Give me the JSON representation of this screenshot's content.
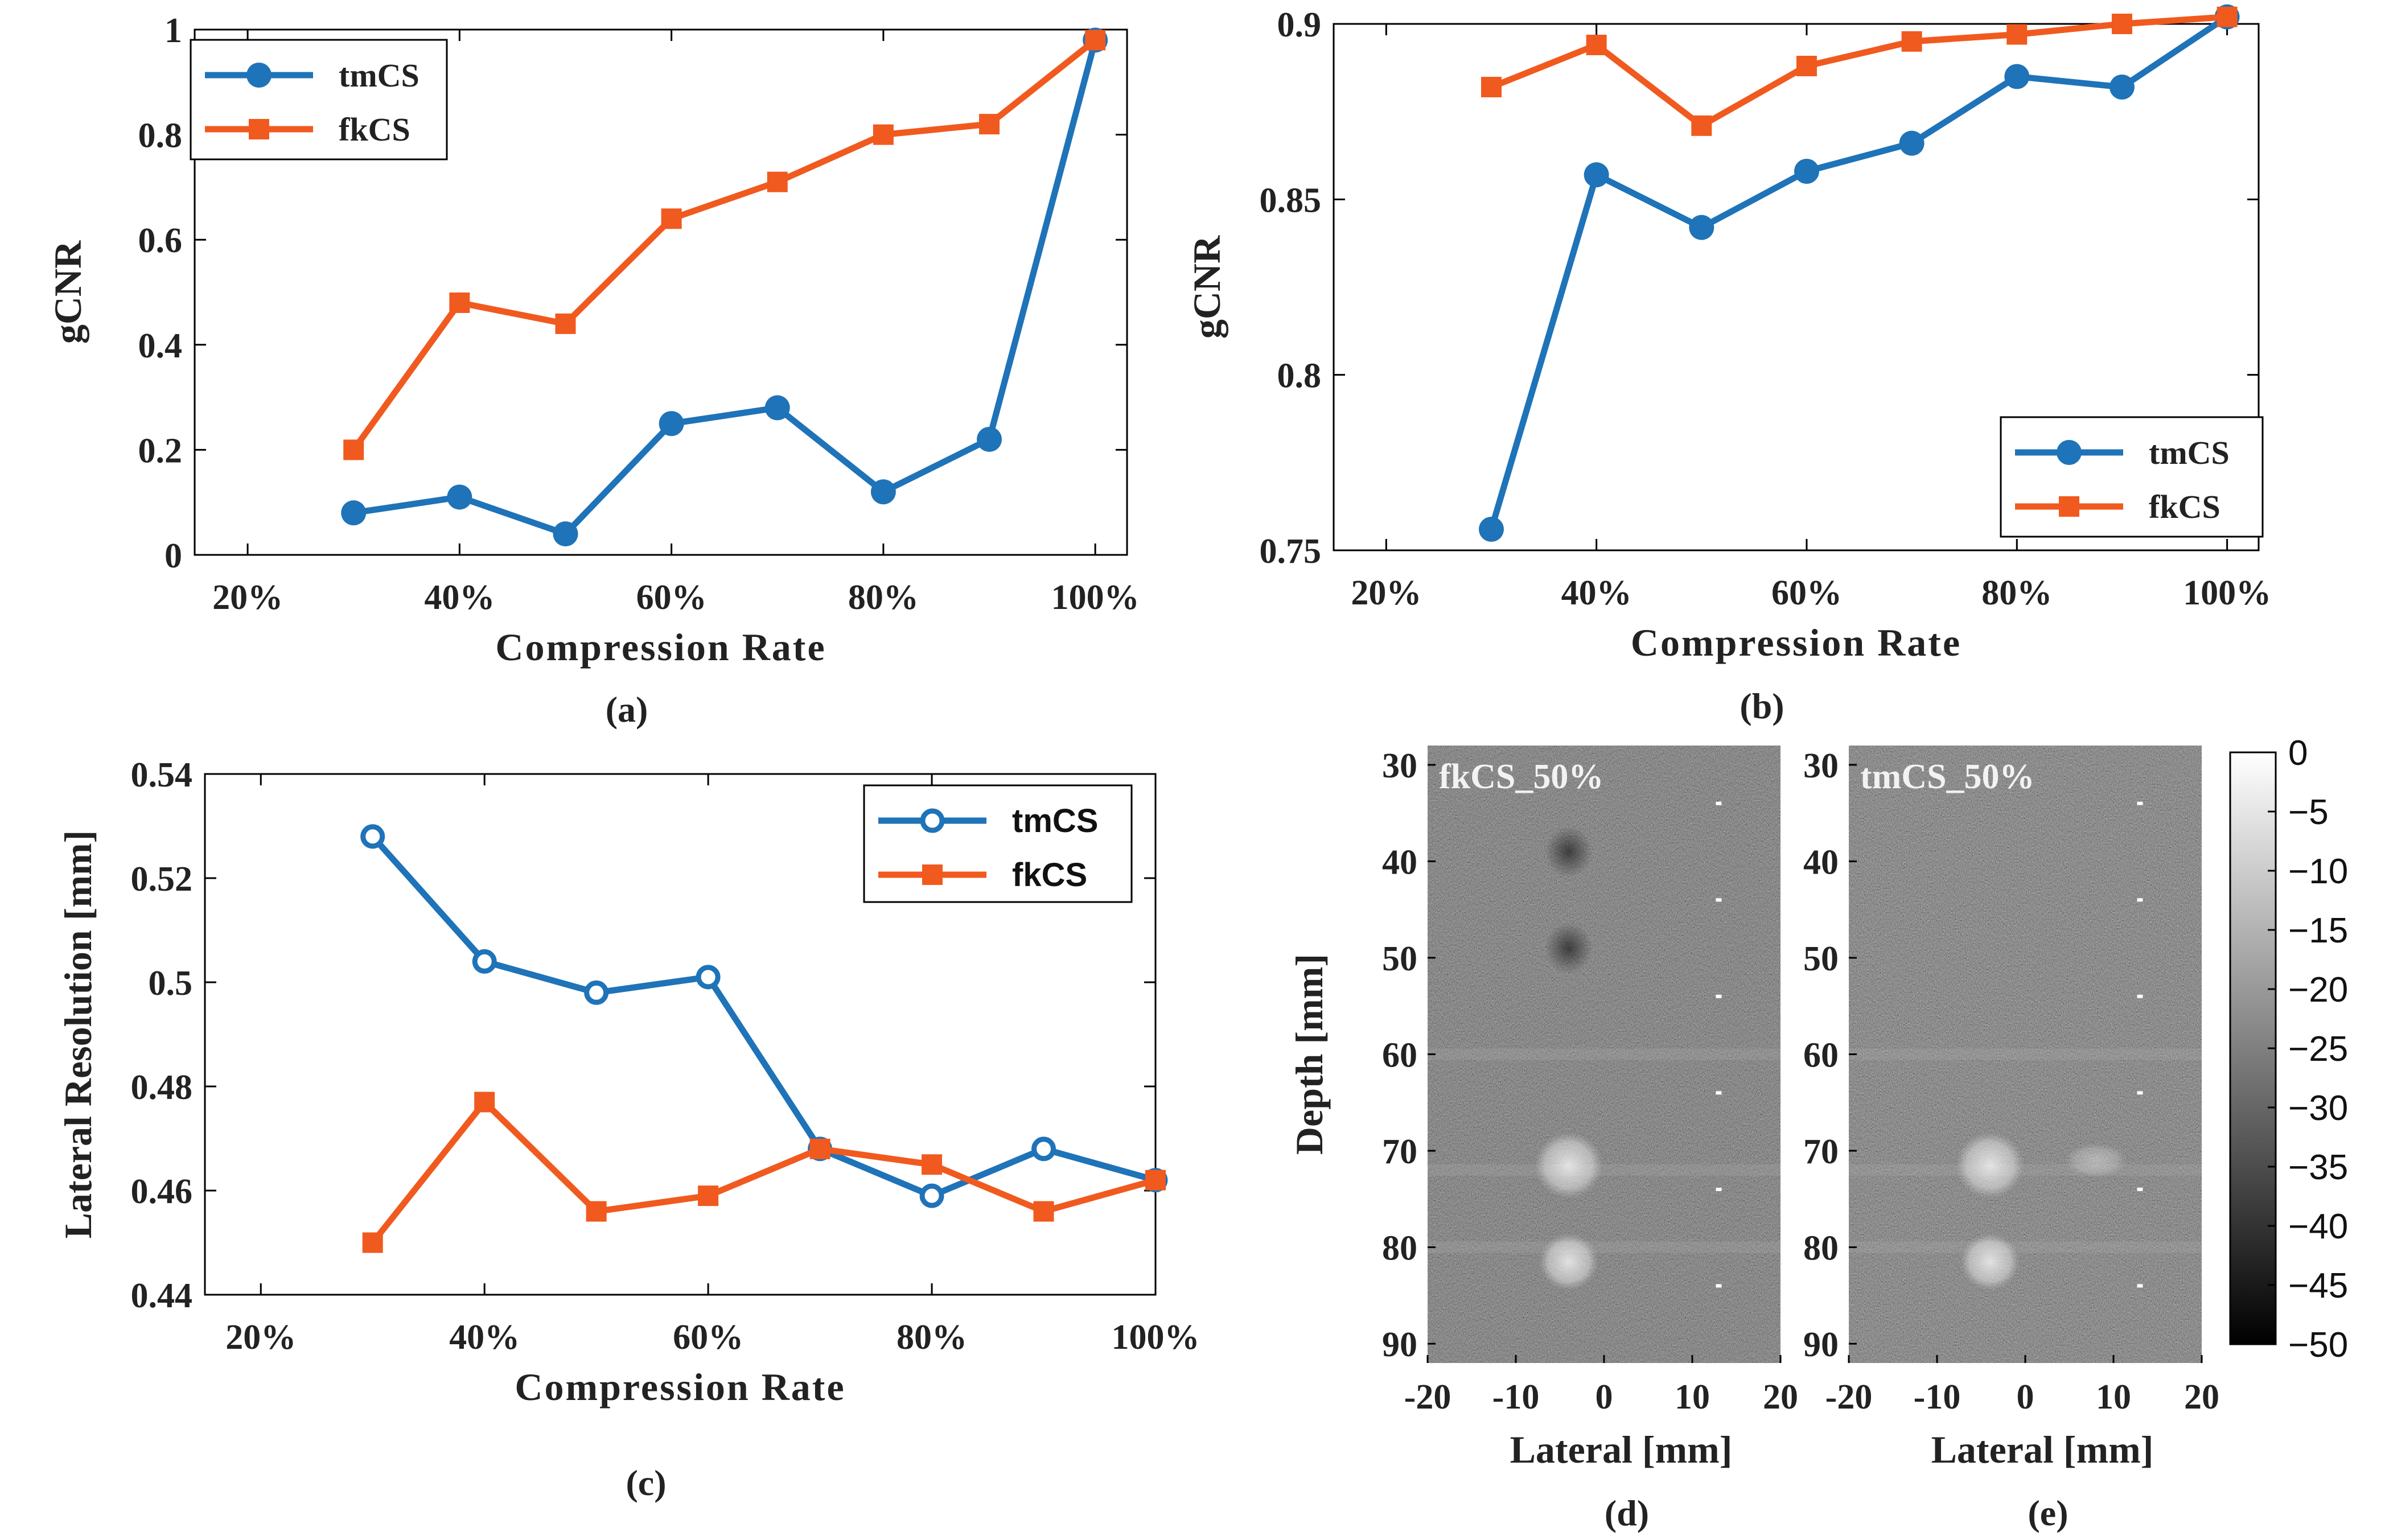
{
  "colors": {
    "tmCS": "#1f73b8",
    "fkCS": "#f05a1f"
  },
  "chart_data": [
    {
      "id": "a",
      "type": "line",
      "panel_label": "(a)",
      "xlabel": "Compression Rate",
      "ylabel": "gCNR",
      "xlim": [
        15,
        103
      ],
      "ylim": [
        0,
        1
      ],
      "xticks": [
        20,
        40,
        60,
        80,
        100
      ],
      "xtick_labels": [
        "20%",
        "40%",
        "60%",
        "80%",
        "100%"
      ],
      "yticks": [
        0,
        0.2,
        0.4,
        0.6,
        0.8,
        1
      ],
      "ytick_labels": [
        "0",
        "0.2",
        "0.4",
        "0.6",
        "0.8",
        "1"
      ],
      "legend_position": "top-left",
      "legend_font": "serif",
      "marker_tmCS": "dot",
      "series": [
        {
          "name": "tmCS",
          "x": [
            30,
            40,
            50,
            60,
            70,
            80,
            90,
            100
          ],
          "y": [
            0.08,
            0.11,
            0.04,
            0.25,
            0.28,
            0.12,
            0.22,
            0.98
          ]
        },
        {
          "name": "fkCS",
          "x": [
            30,
            40,
            50,
            60,
            70,
            80,
            90,
            100
          ],
          "y": [
            0.2,
            0.48,
            0.44,
            0.64,
            0.71,
            0.8,
            0.82,
            0.98
          ]
        }
      ]
    },
    {
      "id": "b",
      "type": "line",
      "panel_label": "(b)",
      "xlabel": "Compression Rate",
      "ylabel": "gCNR",
      "xlim": [
        15,
        103
      ],
      "ylim": [
        0.75,
        0.9
      ],
      "xticks": [
        20,
        40,
        60,
        80,
        100
      ],
      "xtick_labels": [
        "20%",
        "40%",
        "60%",
        "80%",
        "100%"
      ],
      "yticks": [
        0.75,
        0.8,
        0.85,
        0.9
      ],
      "ytick_labels": [
        "0.75",
        "0.8",
        "0.85",
        "0.9"
      ],
      "legend_position": "bottom-right",
      "legend_font": "serif",
      "marker_tmCS": "dot",
      "series": [
        {
          "name": "tmCS",
          "x": [
            30,
            40,
            50,
            60,
            70,
            80,
            90,
            100
          ],
          "y": [
            0.756,
            0.857,
            0.842,
            0.858,
            0.866,
            0.885,
            0.882,
            0.902
          ]
        },
        {
          "name": "fkCS",
          "x": [
            30,
            40,
            50,
            60,
            70,
            80,
            90,
            100
          ],
          "y": [
            0.882,
            0.894,
            0.871,
            0.888,
            0.895,
            0.897,
            0.9,
            0.902
          ]
        }
      ]
    },
    {
      "id": "c",
      "type": "line",
      "panel_label": "(c)",
      "xlabel": "Compression Rate",
      "ylabel": "Lateral Resolution [mm]",
      "xlim": [
        15,
        100
      ],
      "ylim": [
        0.44,
        0.54
      ],
      "xticks": [
        20,
        40,
        60,
        80,
        100
      ],
      "xtick_labels": [
        "20%",
        "40%",
        "60%",
        "80%",
        "100%"
      ],
      "yticks": [
        0.44,
        0.46,
        0.48,
        0.5,
        0.52,
        0.54
      ],
      "ytick_labels": [
        "0.44",
        "0.46",
        "0.48",
        "0.5",
        "0.52",
        "0.54"
      ],
      "legend_position": "top-right",
      "legend_font": "sans",
      "marker_tmCS": "ring",
      "series": [
        {
          "name": "tmCS",
          "x": [
            30,
            40,
            50,
            60,
            70,
            80,
            90,
            100
          ],
          "y": [
            0.528,
            0.504,
            0.498,
            0.501,
            0.468,
            0.459,
            0.468,
            0.462
          ]
        },
        {
          "name": "fkCS",
          "x": [
            30,
            40,
            50,
            60,
            70,
            80,
            90,
            100
          ],
          "y": [
            0.45,
            0.477,
            0.456,
            0.459,
            0.468,
            0.465,
            0.456,
            0.462
          ]
        }
      ]
    },
    {
      "id": "d",
      "type": "image",
      "panel_label": "(d)",
      "title": "fkCS_50%",
      "xlabel": "Lateral [mm]",
      "ylabel": "Depth [mm]",
      "xlim": [
        -20,
        20
      ],
      "ylim": [
        28,
        92
      ],
      "xticks": [
        -20,
        -10,
        0,
        10,
        20
      ],
      "xtick_labels": [
        "-20",
        "-10",
        "0",
        "10",
        "20"
      ],
      "yticks": [
        30,
        40,
        50,
        60,
        70,
        80,
        90
      ],
      "ytick_labels": [
        "30",
        "40",
        "50",
        "60",
        "70",
        "80",
        "90"
      ]
    },
    {
      "id": "e",
      "type": "image",
      "panel_label": "(e)",
      "title": "tmCS_50%",
      "xlabel": "Lateral [mm]",
      "xlim": [
        -20,
        20
      ],
      "ylim": [
        28,
        92
      ],
      "xticks": [
        -20,
        -10,
        0,
        10,
        20
      ],
      "xtick_labels": [
        "-20",
        "-10",
        "0",
        "10",
        "20"
      ],
      "yticks": [
        30,
        40,
        50,
        60,
        70,
        80,
        90
      ],
      "ytick_labels": [
        "30",
        "40",
        "50",
        "60",
        "70",
        "80",
        "90"
      ]
    },
    {
      "id": "colorbar",
      "type": "colorbar",
      "range": [
        -50,
        0
      ],
      "ticks": [
        0,
        -5,
        -10,
        -15,
        -20,
        -25,
        -30,
        -35,
        -40,
        -45,
        -50
      ],
      "tick_labels": [
        "0",
        "−5",
        "−10",
        "−15",
        "−20",
        "−25",
        "−30",
        "−35",
        "−40",
        "−45",
        "−50"
      ]
    }
  ]
}
